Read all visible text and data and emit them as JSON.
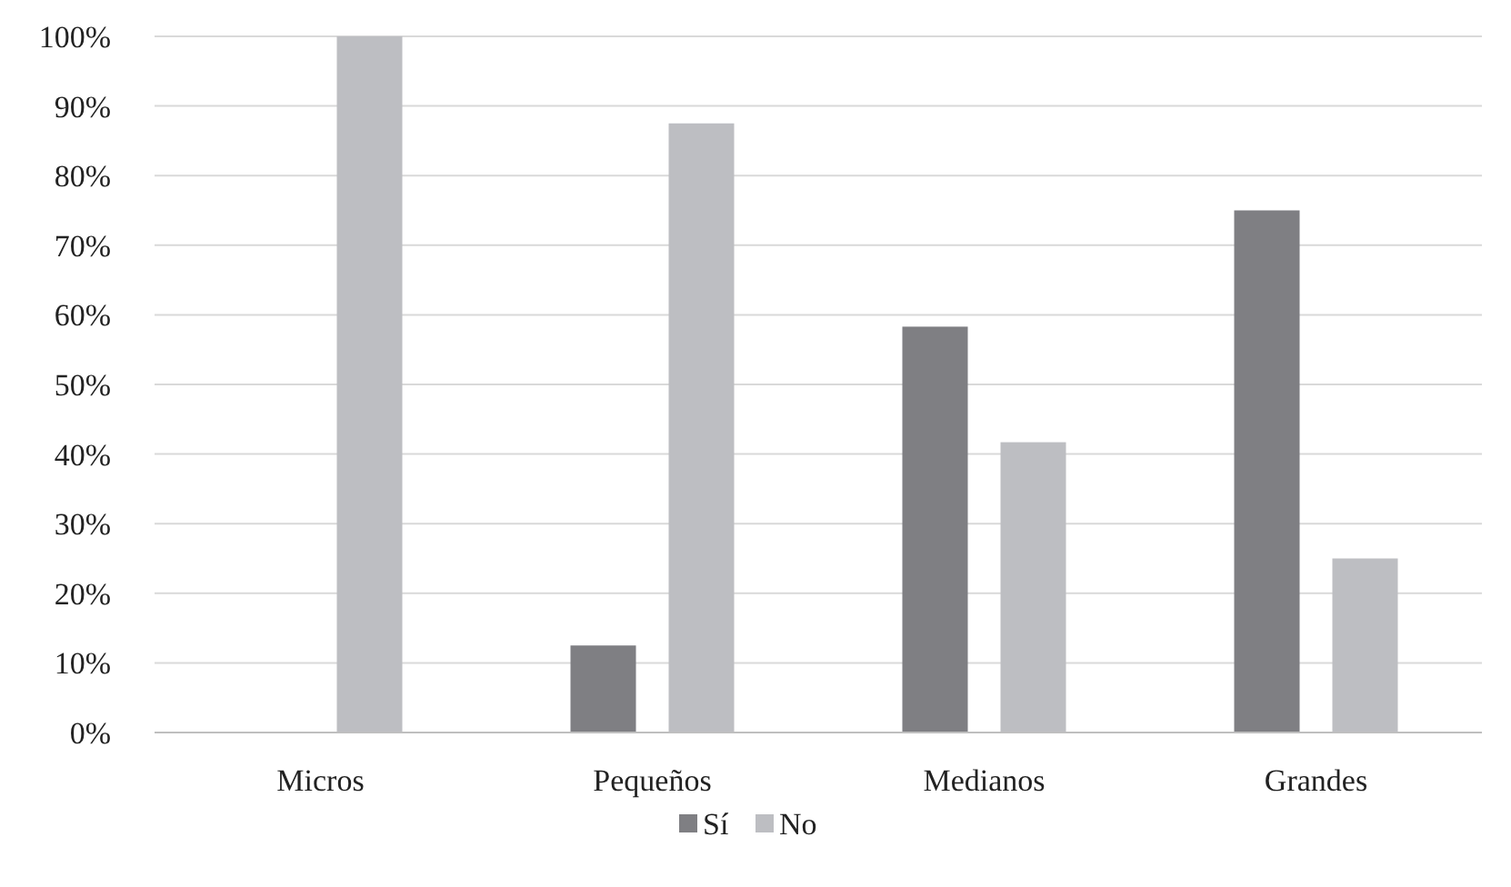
{
  "chart_data": {
    "type": "bar",
    "categories": [
      "Micros",
      "Pequeños",
      "Medianos",
      "Grandes"
    ],
    "series": [
      {
        "name": "Sí",
        "color": "#7f7f83",
        "values": [
          0,
          12.5,
          58.3,
          75
        ]
      },
      {
        "name": "No",
        "color": "#bdbec2",
        "values": [
          100,
          87.5,
          41.7,
          25
        ]
      }
    ],
    "ylim": [
      0,
      100
    ],
    "yticks": [
      {
        "value": 0,
        "label": "0%"
      },
      {
        "value": 10,
        "label": "10%"
      },
      {
        "value": 20,
        "label": "20%"
      },
      {
        "value": 30,
        "label": "30%"
      },
      {
        "value": 40,
        "label": "40%"
      },
      {
        "value": 50,
        "label": "50%"
      },
      {
        "value": 60,
        "label": "60%"
      },
      {
        "value": 70,
        "label": "70%"
      },
      {
        "value": 80,
        "label": "80%"
      },
      {
        "value": 90,
        "label": "90%"
      },
      {
        "value": 100,
        "label": "100%"
      }
    ],
    "grid": "y",
    "legend": "bottom"
  }
}
